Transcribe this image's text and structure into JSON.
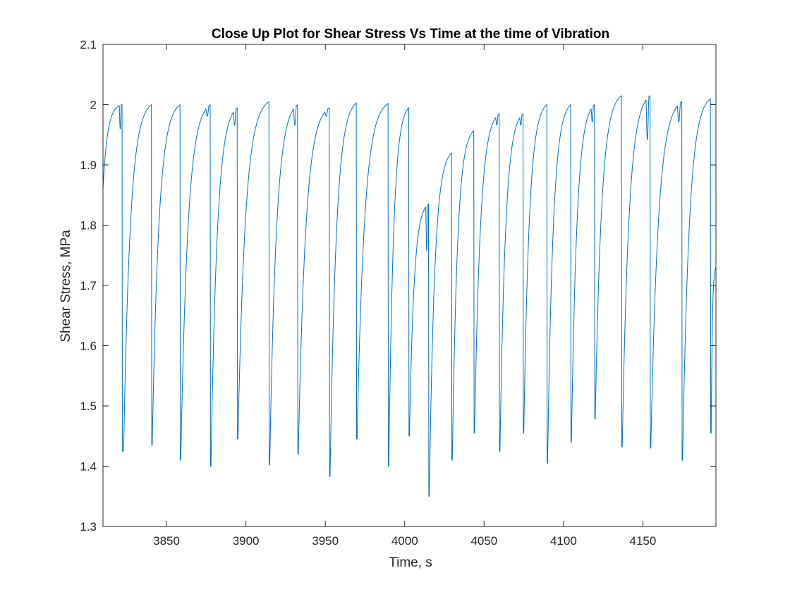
{
  "chart_data": {
    "type": "line",
    "title": "Close Up Plot for Shear Stress Vs Time at the time of Vibration",
    "xlabel": "Time, s",
    "ylabel": "Shear Stress, MPa",
    "xlim": [
      3810,
      4196
    ],
    "ylim": [
      1.3,
      2.1
    ],
    "xticks": [
      3850,
      3900,
      3950,
      4000,
      4050,
      4100,
      4150
    ],
    "xtick_labels": [
      "3850",
      "3900",
      "3950",
      "4000",
      "4050",
      "4100",
      "4150"
    ],
    "yticks": [
      1.3,
      1.4,
      1.5,
      1.6,
      1.7,
      1.8,
      1.9,
      2.0,
      2.1
    ],
    "ytick_labels": [
      "1.3",
      "1.4",
      "1.5",
      "1.6",
      "1.7",
      "1.8",
      "1.9",
      "2",
      "2.1"
    ],
    "grid": false,
    "box": true,
    "series": [
      {
        "color": "#0072BD",
        "cycles": [
          {
            "t0": 3810,
            "t1": 3822,
            "min": 1.86,
            "max": 2.0,
            "dip": 1.96,
            "drop": 1.425
          },
          {
            "t0": 3823,
            "t1": 3840.5,
            "min": 1.425,
            "max": 2.0,
            "drop": 1.435
          },
          {
            "t0": 3841,
            "t1": 3858.5,
            "min": 1.435,
            "max": 2.0,
            "drop": 1.41
          },
          {
            "t0": 3859,
            "t1": 3877.5,
            "min": 1.41,
            "max": 2.0,
            "dip": 1.985,
            "drop": 1.4
          },
          {
            "t0": 3878,
            "t1": 3894.5,
            "min": 1.4,
            "max": 1.995,
            "dip": 1.97,
            "drop": 1.445
          },
          {
            "t0": 3895,
            "t1": 3914.5,
            "min": 1.445,
            "max": 2.005,
            "drop": 1.402
          },
          {
            "t0": 3915,
            "t1": 3932.5,
            "min": 1.402,
            "max": 2.0,
            "dip": 1.97,
            "drop": 1.42
          },
          {
            "t0": 3933,
            "t1": 3952.5,
            "min": 1.42,
            "max": 1.995,
            "dip": 1.985,
            "drop": 1.383
          },
          {
            "t0": 3953,
            "t1": 3969.5,
            "min": 1.383,
            "max": 2.003,
            "drop": 1.445
          },
          {
            "t0": 3970,
            "t1": 3989.5,
            "min": 1.445,
            "max": 2.002,
            "drop": 1.4
          },
          {
            "t0": 3990,
            "t1": 4002.5,
            "min": 1.4,
            "max": 1.995,
            "drop": 1.45
          },
          {
            "t0": 4003,
            "t1": 4015,
            "min": 1.45,
            "max": 1.835,
            "dip": 1.76,
            "drop": 1.35
          },
          {
            "t0": 4015.5,
            "t1": 4029.5,
            "min": 1.35,
            "max": 1.92,
            "drop": 1.41
          },
          {
            "t0": 4030,
            "t1": 4043.5,
            "min": 1.41,
            "max": 1.957,
            "drop": 1.455
          },
          {
            "t0": 4044,
            "t1": 4059.5,
            "min": 1.455,
            "max": 1.985,
            "dip": 1.97,
            "drop": 1.425
          },
          {
            "t0": 4060,
            "t1": 4074.5,
            "min": 1.425,
            "max": 1.985,
            "dip": 1.97,
            "drop": 1.455
          },
          {
            "t0": 4075,
            "t1": 4089.5,
            "min": 1.455,
            "max": 2.0,
            "drop": 1.405
          },
          {
            "t0": 4090,
            "t1": 4104.5,
            "min": 1.405,
            "max": 2.0,
            "drop": 1.44
          },
          {
            "t0": 4105,
            "t1": 4119.5,
            "min": 1.44,
            "max": 2.0,
            "dip": 1.975,
            "drop": 1.478
          },
          {
            "t0": 4120,
            "t1": 4136.5,
            "min": 1.478,
            "max": 2.015,
            "drop": 1.432
          },
          {
            "t0": 4137,
            "t1": 4154.5,
            "min": 1.432,
            "max": 2.015,
            "dip": 1.945,
            "drop": 1.43
          },
          {
            "t0": 4155,
            "t1": 4174.5,
            "min": 1.43,
            "max": 2.005,
            "dip": 1.975,
            "drop": 1.41
          },
          {
            "t0": 4175,
            "t1": 4192.5,
            "min": 1.41,
            "max": 2.01,
            "drop": 1.455
          },
          {
            "t0": 4193,
            "t1": 4196,
            "min": 1.455,
            "max": 1.73
          }
        ]
      }
    ]
  }
}
